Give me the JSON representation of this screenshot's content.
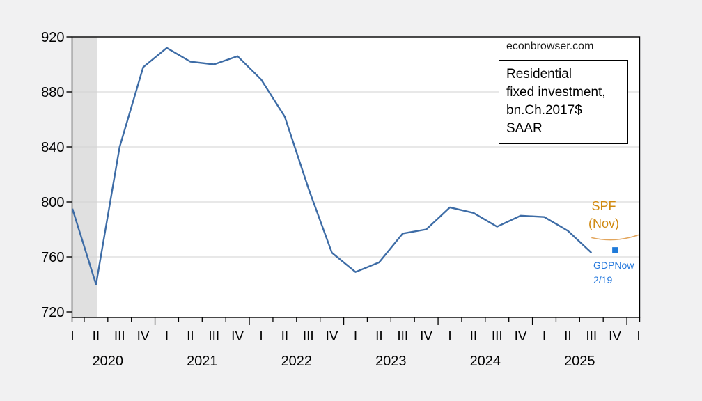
{
  "watermark": "econbrowser.com",
  "info_box": {
    "lines": [
      "Residential",
      "fixed investment,",
      "bn.Ch.2017$ SAAR"
    ]
  },
  "spf_label": {
    "line1": "SPF",
    "line2": "(Nov)",
    "color": "#d0890f"
  },
  "gdpnow_label": {
    "line1": "GDPNow",
    "line2": "2/19",
    "color": "#2277dd"
  },
  "colors": {
    "background": "#f1f1f2",
    "plot_background": "#ffffff",
    "plot_border": "#000000",
    "gridline": "#d2d2d2",
    "recession_band": "#e0e0e0",
    "main_line": "#3d6ca6",
    "spf_line": "#e2a55c",
    "gdpnow_marker": "#1f7ad9"
  },
  "chart_data": {
    "type": "line",
    "title": "Residential fixed investment, bn.Ch.2017$ SAAR",
    "source_watermark": "econbrowser.com",
    "ylim": [
      720,
      920
    ],
    "yticks": [
      920,
      880,
      840,
      800,
      760,
      720
    ],
    "grid": true,
    "x_quarter_labels": [
      "I",
      "II",
      "III",
      "IV",
      "I",
      "II",
      "III",
      "IV",
      "I",
      "II",
      "III",
      "IV",
      "I",
      "II",
      "III",
      "IV",
      "I",
      "II",
      "III",
      "IV",
      "I",
      "II",
      "III",
      "IV",
      "I"
    ],
    "x_year_labels": [
      "2020",
      "2021",
      "2022",
      "2023",
      "2024",
      "2025"
    ],
    "recession_band": {
      "from_quarter": "2020Q1",
      "to_quarter": "2020Q2",
      "from_index": 0,
      "to_index": 1
    },
    "series": [
      {
        "name": "Residential fixed investment (actual)",
        "style": "line",
        "color_key": "main_line",
        "start_quarter": "2020Q1",
        "start_index": 0,
        "values": [
          795,
          740,
          840,
          898,
          912,
          902,
          900,
          906,
          889,
          862,
          810,
          763,
          749,
          756,
          777,
          780,
          796,
          792,
          782,
          790,
          789,
          779,
          763
        ]
      },
      {
        "name": "SPF (Nov) forecast",
        "style": "smooth-line",
        "color_key": "spf_line",
        "start_quarter": "2025Q3",
        "start_index": 22,
        "values": [
          774,
          772.5,
          776
        ]
      },
      {
        "name": "GDPNow 2/19 forecast",
        "style": "square-marker",
        "color_key": "gdpnow_marker",
        "start_quarter": "2025Q4",
        "start_index": 23,
        "values": [
          765
        ]
      }
    ]
  }
}
